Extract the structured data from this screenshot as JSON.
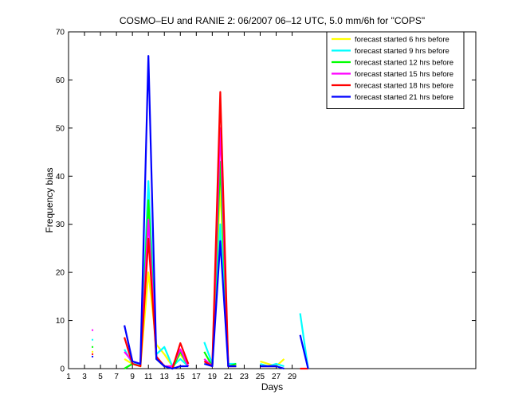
{
  "chart_data": {
    "type": "line",
    "title": "COSMO–EU and RANIE 2: 06/2007 06–12 UTC, 5.0 mm/6h for \"COPS\"",
    "xlabel": "Days",
    "ylabel": "Frequency bias",
    "xlim": [
      1,
      52
    ],
    "ylim": [
      0,
      70
    ],
    "xticks": [
      1,
      3,
      5,
      7,
      9,
      11,
      13,
      15,
      17,
      19,
      21,
      23,
      25,
      27,
      29
    ],
    "yticks": [
      0,
      10,
      20,
      30,
      40,
      50,
      60,
      70
    ],
    "legend_position": "top-right",
    "grid": false,
    "series": [
      {
        "name": "forecast started 6 hrs before",
        "color": "#ffff00",
        "points": [
          [
            4,
            3.5
          ],
          [
            8,
            2
          ],
          [
            9,
            1
          ],
          [
            10,
            0.5
          ],
          [
            11,
            20
          ],
          [
            12,
            5
          ],
          [
            13,
            3
          ],
          [
            14,
            0.5
          ],
          [
            15,
            3
          ],
          [
            16,
            0.5
          ],
          [
            18,
            2
          ],
          [
            19,
            0.5
          ],
          [
            20,
            38
          ],
          [
            21,
            0.5
          ],
          [
            22,
            0.5
          ],
          [
            25,
            1.5
          ],
          [
            26,
            1
          ],
          [
            27,
            0.5
          ],
          [
            28,
            2
          ]
        ]
      },
      {
        "name": "forecast started 9 hrs before",
        "color": "#00ffff",
        "points": [
          [
            4,
            6
          ],
          [
            8,
            4
          ],
          [
            9,
            1
          ],
          [
            10,
            1
          ],
          [
            11,
            39
          ],
          [
            12,
            3
          ],
          [
            13,
            4.5
          ],
          [
            14,
            0.5
          ],
          [
            15,
            2
          ],
          [
            16,
            0.5
          ],
          [
            18,
            5.5
          ],
          [
            19,
            1
          ],
          [
            20,
            30
          ],
          [
            21,
            1
          ],
          [
            22,
            1
          ],
          [
            25,
            1
          ],
          [
            26,
            0.5
          ],
          [
            27,
            1
          ],
          [
            28,
            0.5
          ],
          [
            30,
            11.5
          ],
          [
            31,
            0
          ]
        ]
      },
      {
        "name": "forecast started 12 hrs before",
        "color": "#00ff00",
        "points": [
          [
            4,
            4.5
          ],
          [
            8,
            0
          ],
          [
            9,
            1
          ],
          [
            10,
            0.5
          ],
          [
            11,
            35
          ],
          [
            12,
            2
          ],
          [
            13,
            0.5
          ],
          [
            14,
            0
          ],
          [
            15,
            3.5
          ],
          [
            16,
            0.5
          ],
          [
            18,
            3.5
          ],
          [
            19,
            0.5
          ],
          [
            20,
            43
          ],
          [
            21,
            0.5
          ],
          [
            22,
            1
          ],
          [
            25,
            0.5
          ],
          [
            26,
            0.5
          ],
          [
            27,
            0.5
          ]
        ]
      },
      {
        "name": "forecast started 15 hrs before",
        "color": "#ff00ff",
        "points": [
          [
            4,
            8
          ],
          [
            8,
            3.5
          ],
          [
            9,
            1.5
          ],
          [
            10,
            1
          ],
          [
            11,
            31
          ],
          [
            12,
            2.5
          ],
          [
            13,
            0.5
          ],
          [
            14,
            0.5
          ],
          [
            15,
            4
          ],
          [
            16,
            0.5
          ],
          [
            18,
            2
          ],
          [
            19,
            0.5
          ],
          [
            20,
            50
          ],
          [
            21,
            0.5
          ],
          [
            22,
            0.5
          ],
          [
            25,
            0.5
          ],
          [
            26,
            0.5
          ],
          [
            27,
            0.5
          ]
        ]
      },
      {
        "name": "forecast started 18 hrs before",
        "color": "#ff0000",
        "points": [
          [
            4,
            3
          ],
          [
            8,
            6.5
          ],
          [
            9,
            1
          ],
          [
            10,
            0.5
          ],
          [
            11,
            27
          ],
          [
            12,
            2.5
          ],
          [
            13,
            0.5
          ],
          [
            14,
            0
          ],
          [
            15,
            5.3
          ],
          [
            16,
            1
          ],
          [
            18,
            1.5
          ],
          [
            19,
            0.5
          ],
          [
            20,
            57.5
          ],
          [
            21,
            0.5
          ],
          [
            22,
            0.5
          ],
          [
            25,
            0.5
          ],
          [
            26,
            0.5
          ],
          [
            27,
            0.5
          ],
          [
            30,
            0
          ],
          [
            31,
            0
          ]
        ]
      },
      {
        "name": "forecast started 21 hrs before",
        "color": "#0000ff",
        "points": [
          [
            4,
            2.5
          ],
          [
            8,
            9
          ],
          [
            9,
            1.5
          ],
          [
            10,
            1
          ],
          [
            11,
            65
          ],
          [
            12,
            2
          ],
          [
            13,
            0.5
          ],
          [
            14,
            0
          ],
          [
            15,
            0.5
          ],
          [
            16,
            0.5
          ],
          [
            18,
            1
          ],
          [
            19,
            0.5
          ],
          [
            20,
            26.5
          ],
          [
            21,
            0.5
          ],
          [
            22,
            0.5
          ],
          [
            25,
            0.5
          ],
          [
            26,
            0.5
          ],
          [
            27,
            0.5
          ],
          [
            28,
            0
          ],
          [
            30,
            7
          ],
          [
            31,
            0
          ]
        ]
      }
    ]
  }
}
